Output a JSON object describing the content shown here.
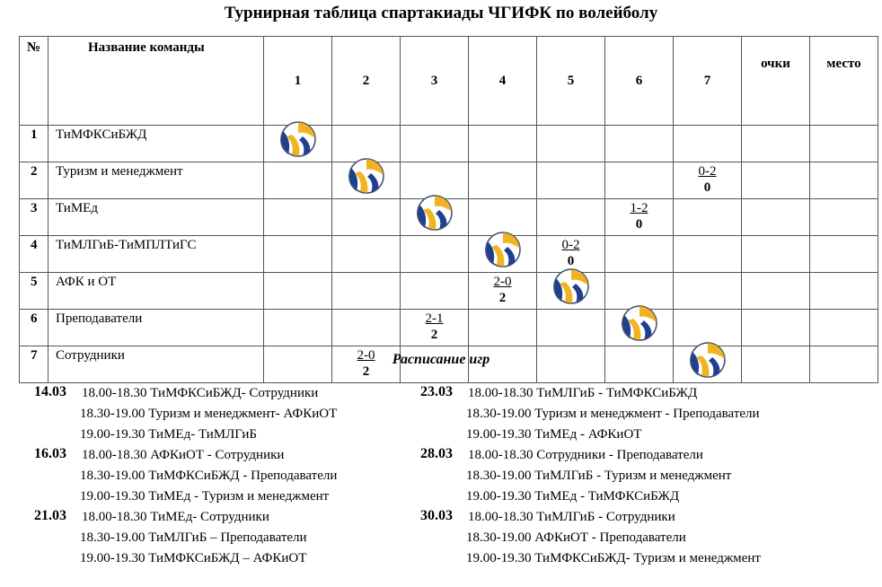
{
  "title": "Турнирная таблица спартакиады ЧГИФК по волейболу",
  "table": {
    "header": {
      "num": "№",
      "name": "Название команды",
      "cols": [
        "1",
        "2",
        "3",
        "4",
        "5",
        "6",
        "7"
      ],
      "points": "очки",
      "place": "место"
    },
    "teams": [
      {
        "num": "1",
        "name": "ТиМФКСиБЖД"
      },
      {
        "num": "2",
        "name": "Туризм и менеджмент"
      },
      {
        "num": "3",
        "name": "ТиМЕд"
      },
      {
        "num": "4",
        "name": "ТиМЛГиБ-ТиМПЛТиГС"
      },
      {
        "num": "5",
        "name": "АФК и ОТ"
      },
      {
        "num": "6",
        "name": "Преподаватели"
      },
      {
        "num": "7",
        "name": "Сотрудники"
      }
    ],
    "results": [
      {
        "row": 2,
        "col": 7,
        "score": "0-2",
        "points": "0"
      },
      {
        "row": 3,
        "col": 6,
        "score": "1-2",
        "points": "0"
      },
      {
        "row": 4,
        "col": 5,
        "score": "0-2",
        "points": "0"
      },
      {
        "row": 5,
        "col": 4,
        "score": "2-0",
        "points": "2"
      },
      {
        "row": 6,
        "col": 3,
        "score": "2-1",
        "points": "2"
      },
      {
        "row": 7,
        "col": 2,
        "score": "2-0",
        "points": "2"
      }
    ],
    "diagonal_icon": "volleyball-icon"
  },
  "schedule": {
    "title": "Расписание игр",
    "left": [
      {
        "date": "14.03",
        "games": [
          {
            "time": "18.00-18.30",
            "match": "ТиМФКСиБЖД- Сотрудники"
          },
          {
            "time": "18.30-19.00",
            "match": "Туризм и менеджмент- АФКиОТ"
          },
          {
            "time": "19.00-19.30",
            "match": "ТиМЕд- ТиМЛГиБ"
          }
        ]
      },
      {
        "date": "16.03",
        "games": [
          {
            "time": "18.00-18.30",
            "match": "АФКиОТ - Сотрудники"
          },
          {
            "time": "18.30-19.00",
            "match": "ТиМФКСиБЖД - Преподаватели"
          },
          {
            "time": "19.00-19.30",
            "match": "ТиМЕд - Туризм и менеджмент"
          }
        ]
      },
      {
        "date": "21.03",
        "games": [
          {
            "time": "18.00-18.30",
            "match": "ТиМЕд- Сотрудники"
          },
          {
            "time": "18.30-19.00",
            "match": "ТиМЛГиБ – Преподаватели"
          },
          {
            "time": "19.00-19.30",
            "match": "ТиМФКСиБЖД – АФКиОТ"
          }
        ]
      }
    ],
    "right": [
      {
        "date": "23.03",
        "games": [
          {
            "time": "18.00-18.30",
            "match": "ТиМЛГиБ - ТиМФКСиБЖД"
          },
          {
            "time": "18.30-19.00",
            "match": "Туризм и менеджмент - Преподаватели"
          },
          {
            "time": "19.00-19.30",
            "match": "ТиМЕд - АФКиОТ"
          }
        ]
      },
      {
        "date": "28.03",
        "games": [
          {
            "time": "18.00-18.30",
            "match": "Сотрудники - Преподаватели"
          },
          {
            "time": "18.30-19.00",
            "match": "ТиМЛГиБ - Туризм и менеджмент"
          },
          {
            "time": "19.00-19.30",
            "match": "ТиМЕд - ТиМФКСиБЖД"
          }
        ]
      },
      {
        "date": "30.03",
        "games": [
          {
            "time": "18.00-18.30",
            "match": "ТиМЛГиБ - Сотрудники"
          },
          {
            "time": "18.30-19.00",
            "match": "АФКиОТ - Преподаватели"
          },
          {
            "time": "19.00-19.30",
            "match": "ТиМФКСиБЖД- Туризм и менеджмент"
          }
        ]
      }
    ]
  }
}
